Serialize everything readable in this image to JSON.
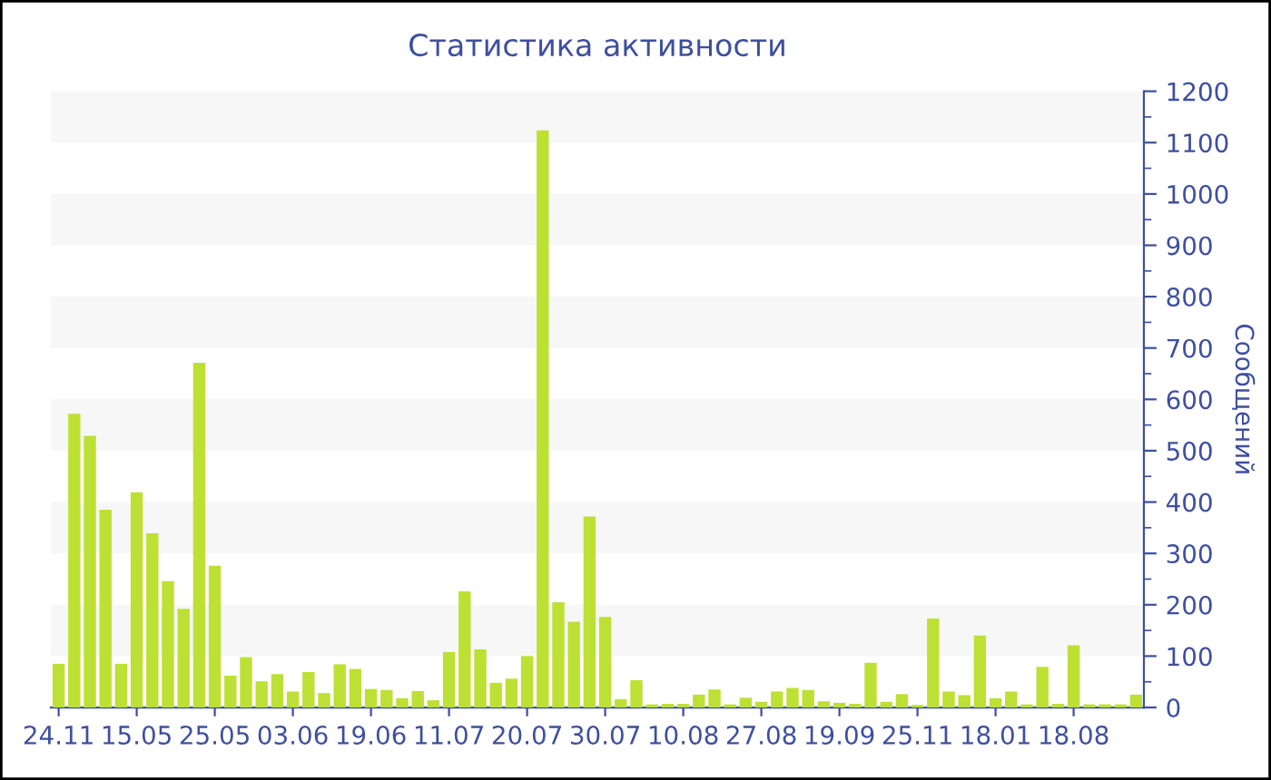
{
  "chart_data": {
    "type": "bar",
    "title": "Статистика активности",
    "ylabel": "Сообщений",
    "categories": [
      "24.11",
      null,
      null,
      null,
      null,
      "15.05",
      null,
      null,
      null,
      null,
      "25.05",
      null,
      null,
      null,
      null,
      "03.06",
      null,
      null,
      null,
      null,
      "19.06",
      null,
      null,
      null,
      null,
      "11.07",
      null,
      null,
      null,
      null,
      "20.07",
      null,
      null,
      null,
      null,
      "30.07",
      null,
      null,
      null,
      null,
      "10.08",
      null,
      null,
      null,
      null,
      "27.08",
      null,
      null,
      null,
      null,
      "19.09",
      null,
      null,
      null,
      null,
      "25.11",
      null,
      null,
      null,
      null,
      "18.01",
      null,
      null,
      null,
      null,
      "18.08",
      null,
      null,
      null,
      null
    ],
    "values": [
      85,
      572,
      529,
      385,
      85,
      419,
      339,
      246,
      192,
      671,
      276,
      62,
      98,
      51,
      65,
      31,
      69,
      28,
      84,
      75,
      36,
      34,
      18,
      32,
      14,
      108,
      226,
      113,
      48,
      56,
      100,
      1124,
      205,
      167,
      372,
      176,
      16,
      53,
      6,
      7,
      7,
      25,
      35,
      6,
      19,
      11,
      31,
      38,
      34,
      12,
      9,
      7,
      87,
      11,
      26,
      5,
      173,
      31,
      24,
      140,
      18,
      31,
      6,
      79,
      7,
      121,
      6,
      6,
      6,
      25
    ],
    "color": "#bde034",
    "ylim": [
      0,
      1200
    ],
    "yticks": [
      0,
      100,
      200,
      300,
      400,
      500,
      600,
      700,
      800,
      900,
      1000,
      1100,
      1200
    ],
    "bands": [
      {
        "axis": "y",
        "from": 100,
        "to": 200,
        "color": "#f7f7f7"
      },
      {
        "axis": "y",
        "from": 300,
        "to": 400,
        "color": "#f7f7f7"
      },
      {
        "axis": "y",
        "from": 500,
        "to": 600,
        "color": "#f7f7f7"
      },
      {
        "axis": "y",
        "from": 700,
        "to": 800,
        "color": "#f7f7f7"
      },
      {
        "axis": "y",
        "from": 900,
        "to": 1000,
        "color": "#f7f7f7"
      },
      {
        "axis": "y",
        "from": 1100,
        "to": 1200,
        "color": "#f7f7f7"
      }
    ],
    "grid": false,
    "legend": false
  }
}
